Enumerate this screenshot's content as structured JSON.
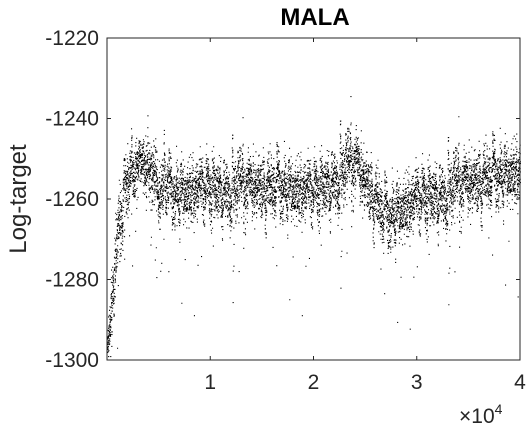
{
  "chart_data": {
    "type": "scatter",
    "title": "MALA",
    "xlabel": "",
    "ylabel": "Log-target",
    "xlim": [
      0,
      40000
    ],
    "ylim": [
      -1300,
      -1220
    ],
    "x_exponent_label": "×10",
    "x_exponent_power": "4",
    "xticks": [
      {
        "value": 10000,
        "label": "1"
      },
      {
        "value": 20000,
        "label": "2"
      },
      {
        "value": 30000,
        "label": "3"
      },
      {
        "value": 40000,
        "label": "4"
      }
    ],
    "yticks": [
      {
        "value": -1220,
        "label": "-1220"
      },
      {
        "value": -1240,
        "label": "-1240"
      },
      {
        "value": -1260,
        "label": "-1260"
      },
      {
        "value": -1280,
        "label": "-1280"
      },
      {
        "value": -1300,
        "label": "-1300"
      }
    ],
    "grid": false,
    "marker_color": "#000000",
    "series": [
      {
        "n_samples": 40000,
        "trace_profile": [
          {
            "x": 0,
            "mean": -1296,
            "spread": 3
          },
          {
            "x": 500,
            "mean": -1285,
            "spread": 5
          },
          {
            "x": 1000,
            "mean": -1268,
            "spread": 6
          },
          {
            "x": 1800,
            "mean": -1257,
            "spread": 5
          },
          {
            "x": 3000,
            "mean": -1250,
            "spread": 4
          },
          {
            "x": 4500,
            "mean": -1254,
            "spread": 5
          },
          {
            "x": 6000,
            "mean": -1259,
            "spread": 5
          },
          {
            "x": 10000,
            "mean": -1257,
            "spread": 5
          },
          {
            "x": 15000,
            "mean": -1257,
            "spread": 5
          },
          {
            "x": 20000,
            "mean": -1258,
            "spread": 5
          },
          {
            "x": 24000,
            "mean": -1251,
            "spread": 5
          },
          {
            "x": 27000,
            "mean": -1265,
            "spread": 5
          },
          {
            "x": 30000,
            "mean": -1260,
            "spread": 5
          },
          {
            "x": 35000,
            "mean": -1256,
            "spread": 5
          },
          {
            "x": 40000,
            "mean": -1253,
            "spread": 5
          }
        ]
      }
    ]
  }
}
